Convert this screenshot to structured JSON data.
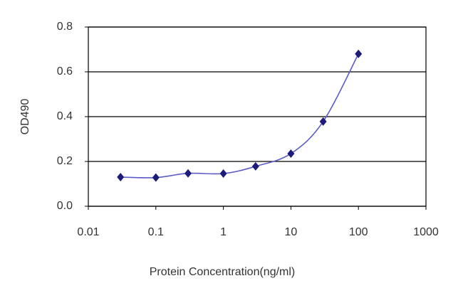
{
  "chart_data": {
    "type": "line",
    "x": [
      0.03,
      0.1,
      0.3,
      1,
      3,
      10,
      30,
      100
    ],
    "values": [
      0.13,
      0.128,
      0.147,
      0.146,
      0.178,
      0.235,
      0.378,
      0.68
    ],
    "color": "#5c5cc8",
    "marker_color": "#1c1c78",
    "x_label": "Protein Concentration(ng/ml)",
    "y_label": "OD490",
    "log_x": true,
    "xlim": [
      0.01,
      1000
    ],
    "xticks": [
      0.01,
      0.1,
      1,
      10,
      100,
      1000
    ],
    "ylim": [
      0,
      0.8
    ],
    "yticks": [
      {
        "value": 0,
        "label": "0.0"
      },
      0.2,
      0.4,
      0.6,
      0.8
    ],
    "grid": true
  }
}
